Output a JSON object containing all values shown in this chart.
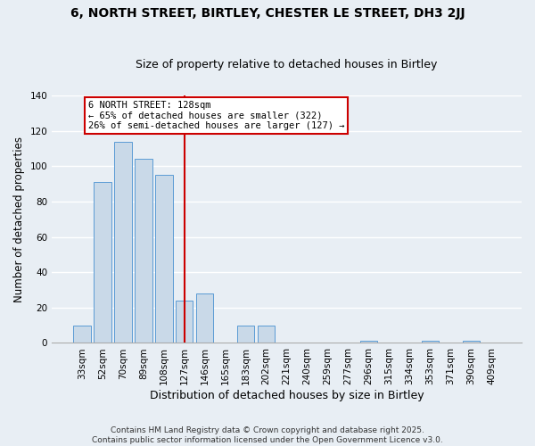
{
  "title1": "6, NORTH STREET, BIRTLEY, CHESTER LE STREET, DH3 2JJ",
  "title2": "Size of property relative to detached houses in Birtley",
  "xlabel": "Distribution of detached houses by size in Birtley",
  "ylabel": "Number of detached properties",
  "categories": [
    "33sqm",
    "52sqm",
    "70sqm",
    "89sqm",
    "108sqm",
    "127sqm",
    "146sqm",
    "165sqm",
    "183sqm",
    "202sqm",
    "221sqm",
    "240sqm",
    "259sqm",
    "277sqm",
    "296sqm",
    "315sqm",
    "334sqm",
    "353sqm",
    "371sqm",
    "390sqm",
    "409sqm"
  ],
  "values": [
    10,
    91,
    114,
    104,
    95,
    24,
    28,
    0,
    10,
    10,
    0,
    0,
    0,
    0,
    1,
    0,
    0,
    1,
    0,
    1,
    0
  ],
  "bar_color": "#c9d9e8",
  "bar_edge_color": "#5b9bd5",
  "fig_bg_color": "#e8eef4",
  "ax_bg_color": "#e8eef4",
  "grid_color": "#ffffff",
  "vline_x_idx": 5,
  "vline_color": "#cc0000",
  "annotation_title": "6 NORTH STREET: 128sqm",
  "annotation_line1": "← 65% of detached houses are smaller (322)",
  "annotation_line2": "26% of semi-detached houses are larger (127) →",
  "annotation_box_edge_color": "#cc0000",
  "ylim": [
    0,
    140
  ],
  "yticks": [
    0,
    20,
    40,
    60,
    80,
    100,
    120,
    140
  ],
  "title1_fontsize": 10,
  "title2_fontsize": 9,
  "xlabel_fontsize": 9,
  "ylabel_fontsize": 8.5,
  "tick_fontsize": 7.5,
  "ann_fontsize": 7.5,
  "footer1": "Contains HM Land Registry data © Crown copyright and database right 2025.",
  "footer2": "Contains public sector information licensed under the Open Government Licence v3.0.",
  "footer_fontsize": 6.5
}
